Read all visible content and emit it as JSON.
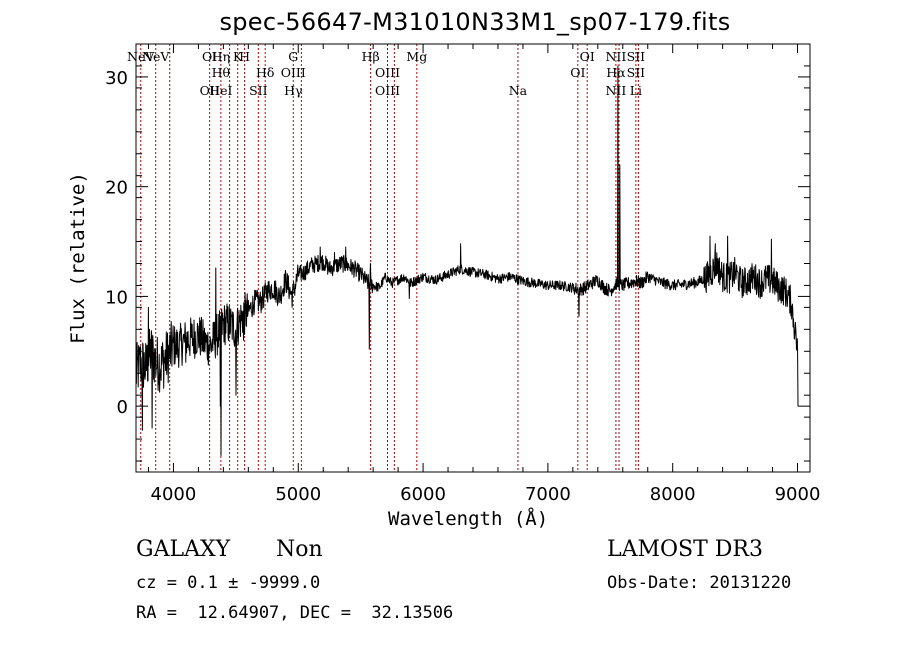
{
  "chart_data": {
    "type": "line",
    "title": "spec-56647-M31010N33M1_sp07-179.fits",
    "xlabel": "Wavelength (Å)",
    "ylabel": "Flux (relative)",
    "xlim": [
      3700,
      9100
    ],
    "ylim": [
      -6,
      33
    ],
    "xticks": [
      4000,
      5000,
      6000,
      7000,
      8000,
      9000
    ],
    "yticks": [
      0,
      10,
      20,
      30
    ],
    "grid": false,
    "spectrum_keypoints": {
      "x": [
        3700,
        3740,
        3780,
        3820,
        3860,
        3900,
        3950,
        4000,
        4050,
        4100,
        4150,
        4200,
        4250,
        4300,
        4350,
        4400,
        4450,
        4500,
        4550,
        4600,
        4650,
        4700,
        4750,
        4800,
        4850,
        4900,
        4950,
        5000,
        5050,
        5100,
        5150,
        5200,
        5250,
        5300,
        5350,
        5400,
        5450,
        5500,
        5550,
        5600,
        5650,
        5700,
        5750,
        5800,
        5850,
        5900,
        5950,
        6000,
        6100,
        6200,
        6300,
        6400,
        6500,
        6600,
        6700,
        6800,
        6900,
        7000,
        7100,
        7200,
        7250,
        7300,
        7350,
        7400,
        7450,
        7500,
        7550,
        7600,
        7650,
        7700,
        7750,
        7800,
        7900,
        8000,
        8100,
        8200,
        8250,
        8300,
        8350,
        8400,
        8450,
        8500,
        8550,
        8600,
        8650,
        8700,
        8750,
        8800,
        8850,
        8900,
        8950,
        9000
      ],
      "values": [
        3,
        4,
        3.5,
        5,
        4,
        3.8,
        4.5,
        5.5,
        5.5,
        6,
        6.2,
        6.5,
        5.8,
        5.5,
        6.5,
        7.5,
        7.5,
        7,
        8.2,
        8.6,
        9.5,
        9.5,
        10.5,
        10.8,
        10,
        11.5,
        10,
        12,
        12.2,
        12.8,
        13,
        13.2,
        12.5,
        12.8,
        13,
        12.8,
        12.5,
        12,
        11.3,
        11,
        10.8,
        11.8,
        11.2,
        11.5,
        11.8,
        11.2,
        11.5,
        11.8,
        11.5,
        12,
        12.5,
        12.2,
        12,
        11.6,
        11.8,
        11.4,
        11.2,
        11,
        11,
        10.8,
        10.6,
        10.8,
        11.2,
        11.5,
        10.8,
        10.5,
        11.2,
        11,
        11.2,
        11.4,
        11.2,
        11.8,
        11.3,
        11,
        11.1,
        11.3,
        11.6,
        12,
        13,
        11.8,
        11.6,
        12.2,
        11.2,
        11.4,
        11.8,
        11.2,
        11.6,
        11.4,
        10.8,
        10.5,
        9.5,
        5
      ]
    },
    "spectrum_features": [
      {
        "x": 3752,
        "value": -2.2
      },
      {
        "x": 3800,
        "value": 9
      },
      {
        "x": 3830,
        "value": -2
      },
      {
        "x": 4100,
        "value": 4
      },
      {
        "x": 4340,
        "value": 12.6
      },
      {
        "x": 4345,
        "value": 7
      },
      {
        "x": 4375,
        "value": 0
      },
      {
        "x": 4382,
        "value": -4.5
      },
      {
        "x": 4500,
        "value": 1
      },
      {
        "x": 4560,
        "value": 6
      },
      {
        "x": 5175,
        "value": 14.5
      },
      {
        "x": 5290,
        "value": 14
      },
      {
        "x": 5380,
        "value": 14.5
      },
      {
        "x": 5568,
        "value": 5.2
      },
      {
        "x": 5577,
        "value": 13
      },
      {
        "x": 5890,
        "value": 9.8
      },
      {
        "x": 6300,
        "value": 14.8
      },
      {
        "x": 6360,
        "value": 12.5
      },
      {
        "x": 7250,
        "value": 8.2
      },
      {
        "x": 7560,
        "value": 31
      },
      {
        "x": 7575,
        "value": 22
      },
      {
        "x": 8300,
        "value": 15.5
      },
      {
        "x": 8340,
        "value": 14.8
      },
      {
        "x": 8440,
        "value": 15.5
      },
      {
        "x": 8790,
        "value": 15.2
      },
      {
        "x": 8985,
        "value": 7
      },
      {
        "x": 9005,
        "value": 0
      }
    ],
    "line_markers": [
      {
        "x": 3738,
        "labels": [
          "NeV"
        ]
      },
      {
        "x": 3858,
        "labels": [
          "NeV"
        ]
      },
      {
        "x": 3970,
        "labels": []
      },
      {
        "x": 4290,
        "labels": [
          "OI",
          "",
          "OII"
        ]
      },
      {
        "x": 4380,
        "labels": [
          "Hη",
          "Hθ",
          "HeI"
        ]
      },
      {
        "x": 4450,
        "labels": []
      },
      {
        "x": 4515,
        "labels": [
          "K"
        ]
      },
      {
        "x": 4570,
        "labels": [
          "H"
        ]
      },
      {
        "x": 4680,
        "labels": [
          "",
          "",
          "SII"
        ]
      },
      {
        "x": 4735,
        "labels": [
          "",
          "Hδ"
        ]
      },
      {
        "x": 4960,
        "labels": [
          "G",
          "OIII",
          "Hγ"
        ]
      },
      {
        "x": 5025,
        "labels": []
      },
      {
        "x": 5580,
        "labels": [
          "Hβ"
        ]
      },
      {
        "x": 5715,
        "labels": [
          "",
          "OIII",
          "OIII"
        ]
      },
      {
        "x": 5770,
        "labels": []
      },
      {
        "x": 5950,
        "labels": [
          "Mg"
        ]
      },
      {
        "x": 6760,
        "labels": [
          "",
          "",
          "Na"
        ]
      },
      {
        "x": 7240,
        "labels": [
          "",
          "OI"
        ]
      },
      {
        "x": 7315,
        "labels": [
          "OI"
        ]
      },
      {
        "x": 7545,
        "labels": [
          "NII",
          "Hα",
          "NII"
        ]
      },
      {
        "x": 7570,
        "labels": []
      },
      {
        "x": 7705,
        "labels": [
          "SII",
          "SII",
          "Li"
        ]
      },
      {
        "x": 7725,
        "labels": []
      }
    ]
  },
  "info": {
    "object_class": "GALAXY",
    "subclass": "Non",
    "survey": "LAMOST DR3",
    "cz_line": "cz = 0.1 ± -9999.0",
    "obs_date_line": "Obs-Date: 20131220",
    "radec_line": "RA =  12.64907, DEC =  32.13506"
  },
  "colors": {
    "spectrum": "#000000",
    "marker_line": "#b40000",
    "axis": "#000000",
    "background": "#ffffff"
  }
}
